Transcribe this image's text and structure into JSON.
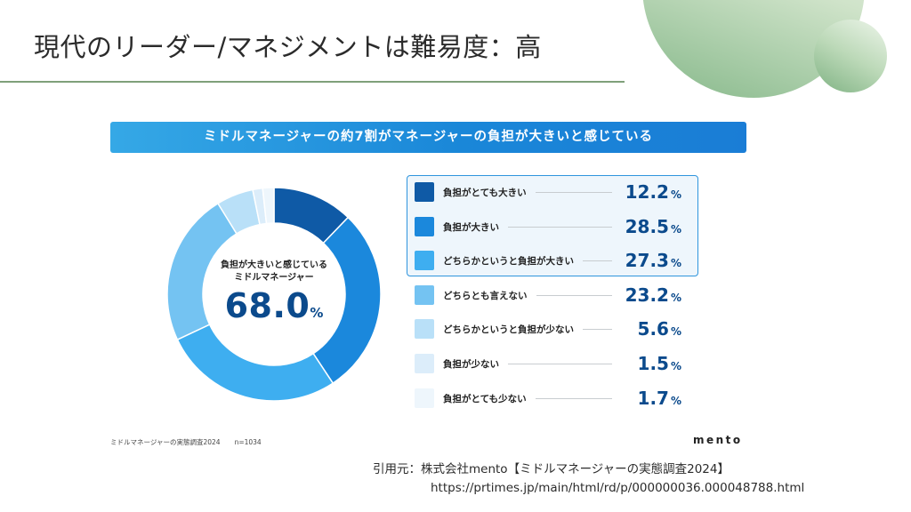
{
  "page": {
    "title": "現代のリーダー/マネジメントは難易度：高",
    "citation": "引用元：株式会社mento【ミドルマネージャーの実態調査2024】",
    "url": "https://prtimes.jp/main/html/rd/p/000000036.000048788.html"
  },
  "chart_data": {
    "type": "pie",
    "title": "ミドルマネージャーの約7割がマネージャーの負担が大きいと感じている",
    "center_caption_line1": "負担が大きいと感じている",
    "center_caption_line2": "ミドルマネージャー",
    "center_value": "68.0",
    "center_unit": "%",
    "unit": "%",
    "highlighted_count": 3,
    "slices": [
      {
        "label": "負担がとても大きい",
        "value": 12.2,
        "display": "12.2",
        "color": "#0f5aa6"
      },
      {
        "label": "負担が大きい",
        "value": 28.5,
        "display": "28.5",
        "color": "#1b88dc"
      },
      {
        "label": "どちらかというと負担が大きい",
        "value": 27.3,
        "display": "27.3",
        "color": "#3eaef0"
      },
      {
        "label": "どちらとも言えない",
        "value": 23.2,
        "display": "23.2",
        "color": "#74c3f2"
      },
      {
        "label": "どちらかというと負担が少ない",
        "value": 5.6,
        "display": "5.6",
        "color": "#b9e0f8"
      },
      {
        "label": "負担が少ない",
        "value": 1.5,
        "display": "1.5",
        "color": "#dcedfa"
      },
      {
        "label": "負担がとても少ない",
        "value": 1.7,
        "display": "1.7",
        "color": "#eef6fc"
      }
    ],
    "footnote": "ミドルマネージャーの実態調査2024",
    "sample": "n=1034",
    "brand": "mento"
  }
}
